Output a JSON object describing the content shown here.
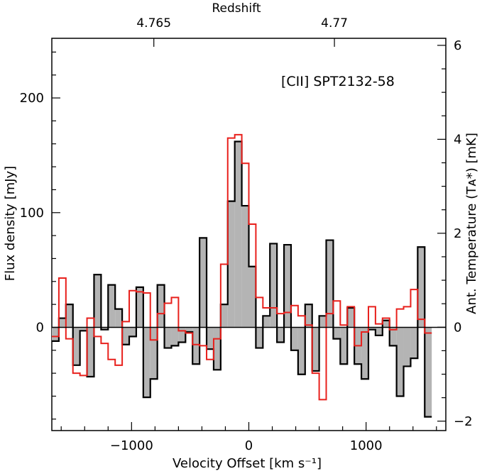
{
  "chart_data": {
    "type": "step",
    "title": "[CII] SPT2132-58",
    "xlabel": "Velocity Offset [km s⁻¹]",
    "ylabel": "Flux density [mJy]",
    "ylabel_right": "Ant. Temperature (Tᴀ*) [mK]",
    "xlabel_top": "Redshift",
    "xlim": [
      -1680,
      1680
    ],
    "ylim": [
      -90,
      252
    ],
    "y2lim": [
      -2.2,
      6.15
    ],
    "x_ticks": [
      {
        "value": -1000,
        "label": "−1000"
      },
      {
        "value": 0,
        "label": "0"
      },
      {
        "value": 1000,
        "label": "1000"
      }
    ],
    "y_ticks": [
      {
        "value": 0,
        "label": "0"
      },
      {
        "value": 100,
        "label": "100"
      },
      {
        "value": 200,
        "label": "200"
      }
    ],
    "y2_ticks": [
      {
        "value": -2,
        "label": "−2"
      },
      {
        "value": 0,
        "label": "0"
      },
      {
        "value": 2,
        "label": "2"
      },
      {
        "value": 4,
        "label": "4"
      },
      {
        "value": 6,
        "label": "6"
      }
    ],
    "top_ticks": [
      {
        "value": -810,
        "label": "4.765"
      },
      {
        "value": 730,
        "label": "4.77"
      }
    ],
    "bin_width": 60,
    "series": [
      {
        "name": "flux density (filled)",
        "color": "#000000",
        "fill": "#b4b4b4",
        "x_start": -1680,
        "values": [
          -12,
          8,
          20,
          -33,
          -3,
          -43,
          46,
          -2,
          37,
          16,
          -15,
          -8,
          35,
          -61,
          -45,
          37,
          -18,
          -16,
          -13,
          -4,
          -32,
          78,
          -19,
          -37,
          20,
          110,
          162,
          106,
          53,
          -18,
          10,
          73,
          -13,
          72,
          -20,
          -41,
          20,
          -38,
          10,
          76,
          -10,
          -32,
          17,
          -32,
          -45,
          -2,
          -7,
          6,
          -16,
          -60,
          -34,
          -27,
          70,
          -78
        ]
      },
      {
        "name": "antenna temperature",
        "color": "#e8201c",
        "x_start": -1680,
        "values": [
          -8,
          43,
          -10,
          -40,
          -42,
          8,
          -8,
          -14,
          -28,
          -33,
          5,
          32,
          31,
          30,
          -11,
          12,
          21,
          26,
          -3,
          -5,
          -15,
          -16,
          -28,
          -10,
          55,
          165,
          168,
          143,
          90,
          26,
          17,
          17,
          12,
          13,
          19,
          10,
          2,
          -40,
          -63,
          12,
          23,
          2,
          18,
          -16,
          -4,
          18,
          3,
          8,
          -2,
          16,
          18,
          33,
          7,
          -5
        ]
      }
    ]
  }
}
